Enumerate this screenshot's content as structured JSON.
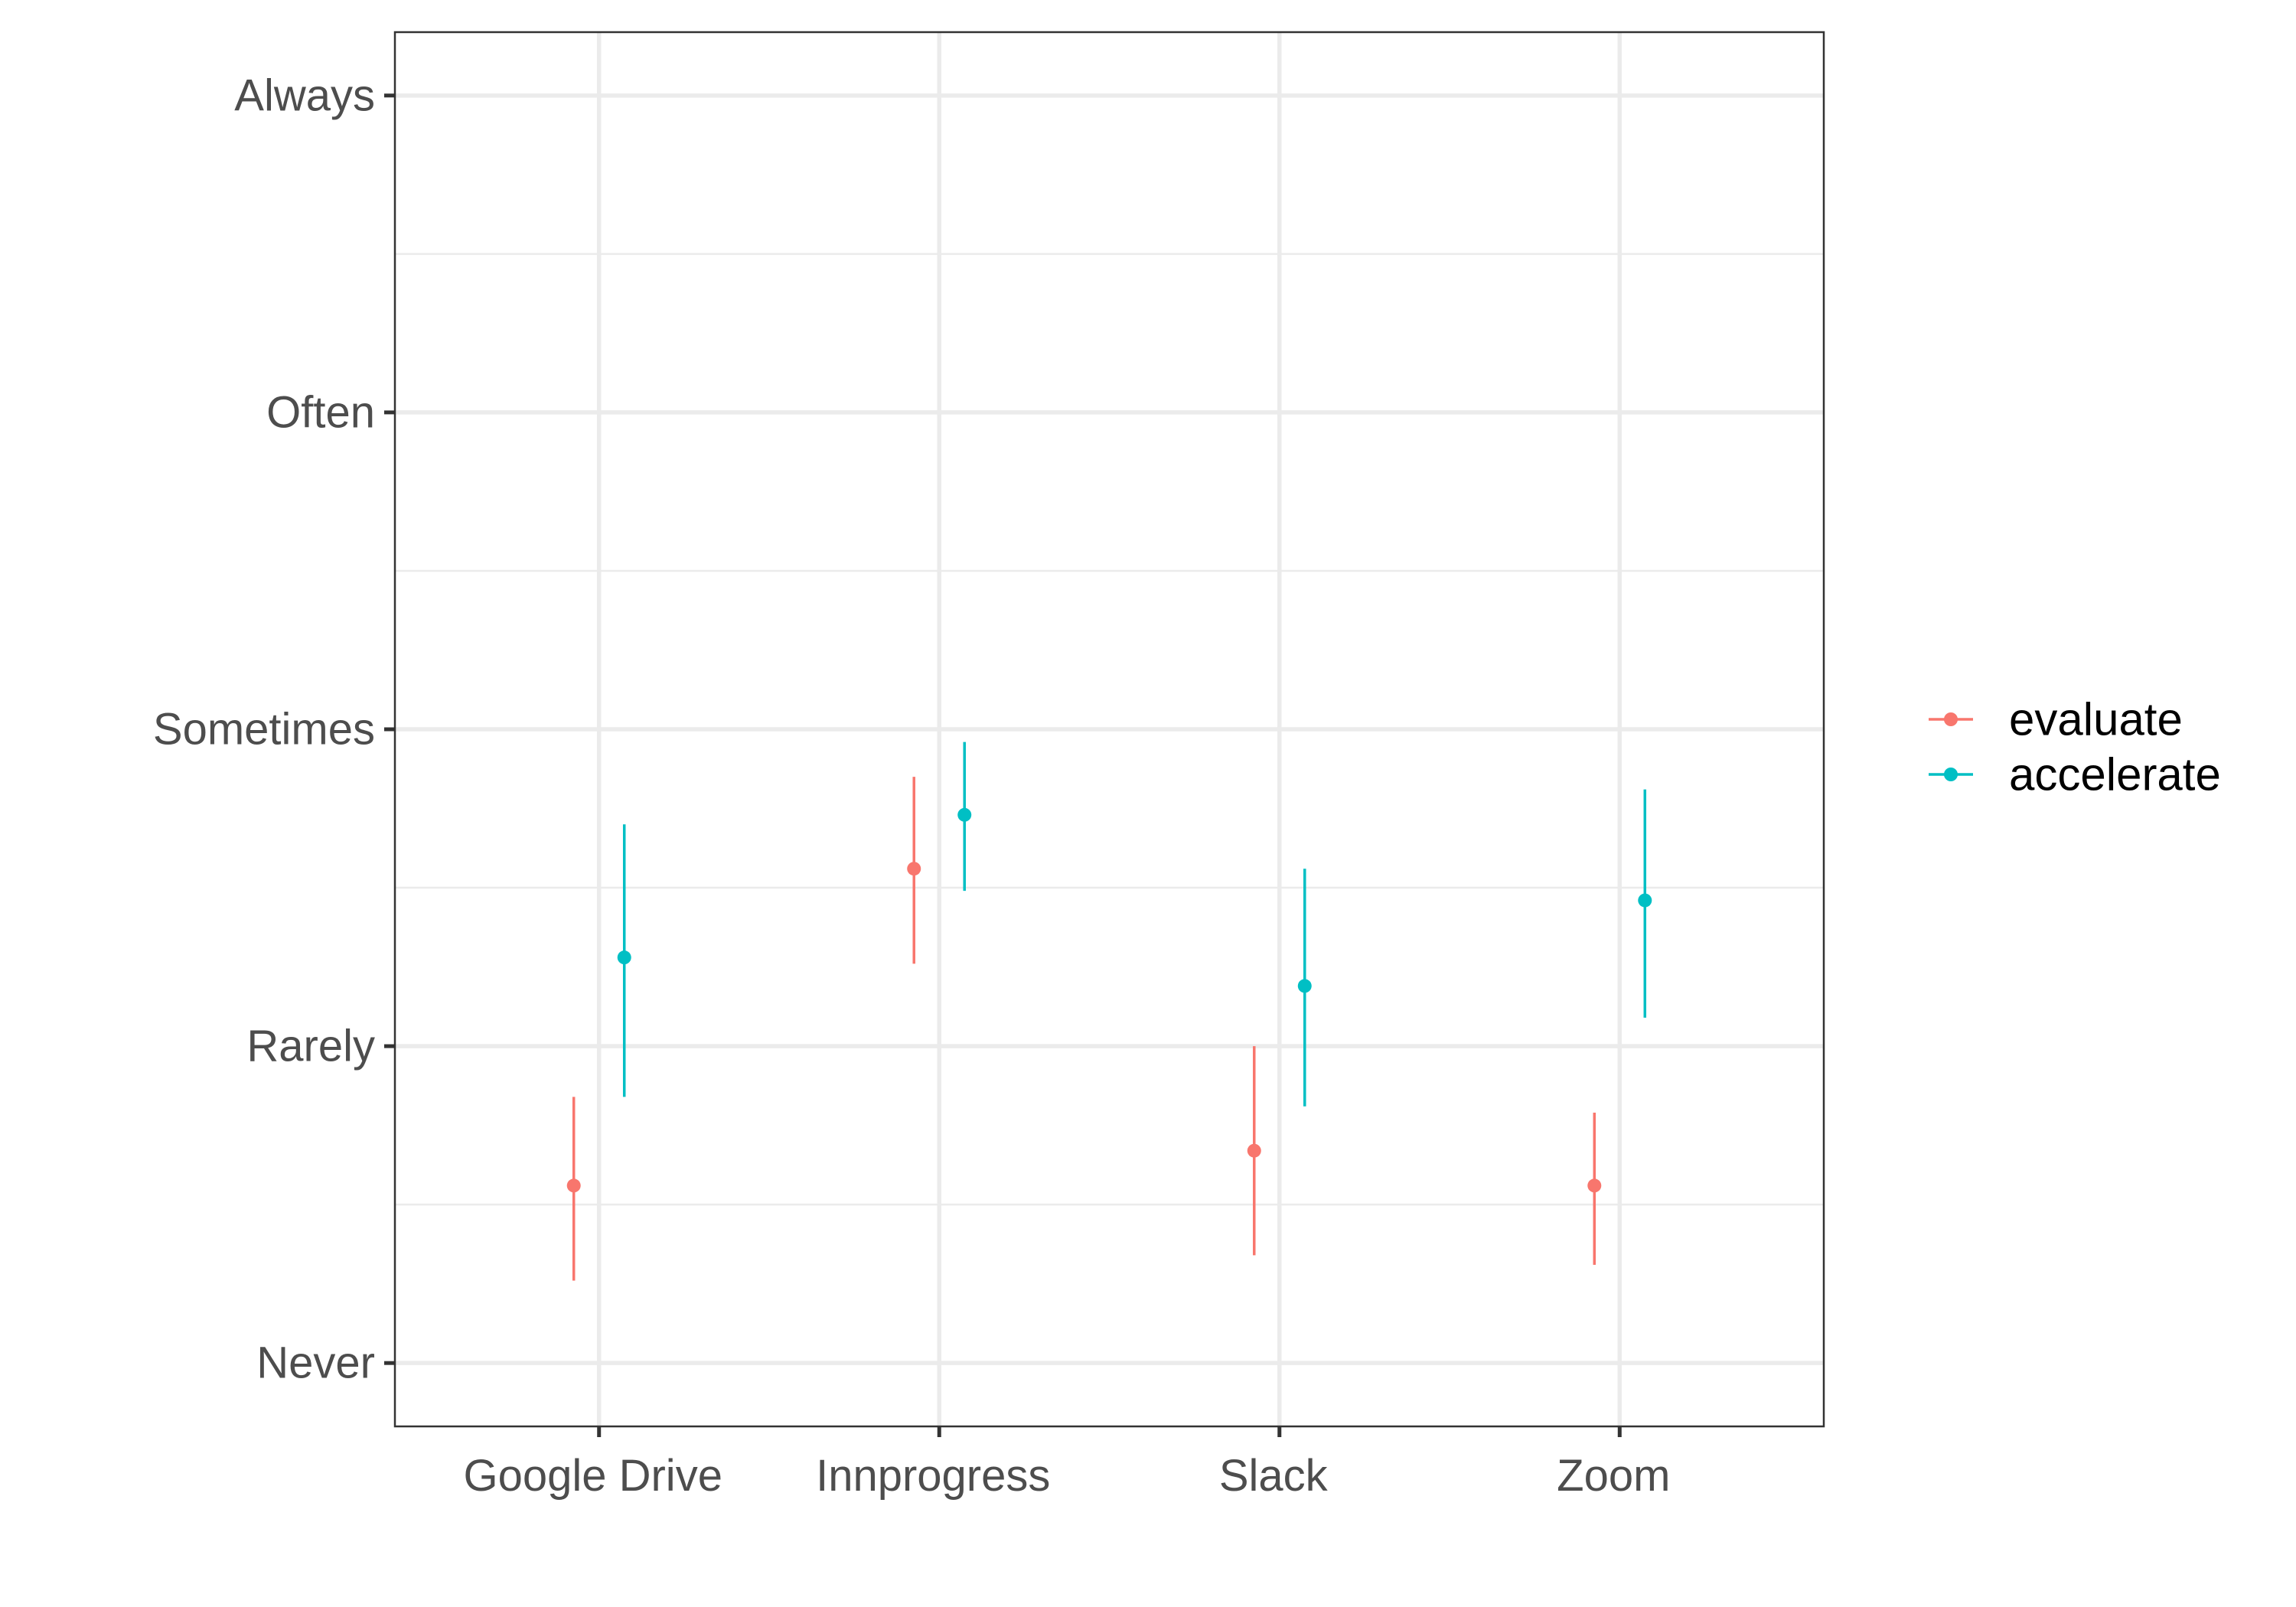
{
  "chart_data": {
    "type": "scatter",
    "title": "",
    "xlabel": "",
    "ylabel": "",
    "categories": [
      "Google Drive",
      "Innprogress",
      "Slack",
      "Zoom"
    ],
    "y_ticks": [
      {
        "value": 1,
        "label": "Never"
      },
      {
        "value": 2,
        "label": "Rarely"
      },
      {
        "value": 3,
        "label": "Sometimes"
      },
      {
        "value": 4,
        "label": "Often"
      },
      {
        "value": 5,
        "label": "Always"
      }
    ],
    "ylim": [
      0.8,
      5.2
    ],
    "grid": true,
    "legend_position": "right",
    "series": [
      {
        "name": "evaluate",
        "color": "#F8766D",
        "points": [
          {
            "category": "Google Drive",
            "y": 1.56,
            "low": 1.26,
            "high": 1.84
          },
          {
            "category": "Innprogress",
            "y": 2.56,
            "low": 2.26,
            "high": 2.85
          },
          {
            "category": "Slack",
            "y": 1.67,
            "low": 1.34,
            "high": 2.0
          },
          {
            "category": "Zoom",
            "y": 1.56,
            "low": 1.31,
            "high": 1.79
          }
        ]
      },
      {
        "name": "accelerate",
        "color": "#00BFC4",
        "points": [
          {
            "category": "Google Drive",
            "y": 2.28,
            "low": 1.84,
            "high": 2.7
          },
          {
            "category": "Innprogress",
            "y": 2.73,
            "low": 2.49,
            "high": 2.96
          },
          {
            "category": "Slack",
            "y": 2.19,
            "low": 1.81,
            "high": 2.56
          },
          {
            "category": "Zoom",
            "y": 2.46,
            "low": 2.09,
            "high": 2.81
          }
        ]
      }
    ]
  }
}
